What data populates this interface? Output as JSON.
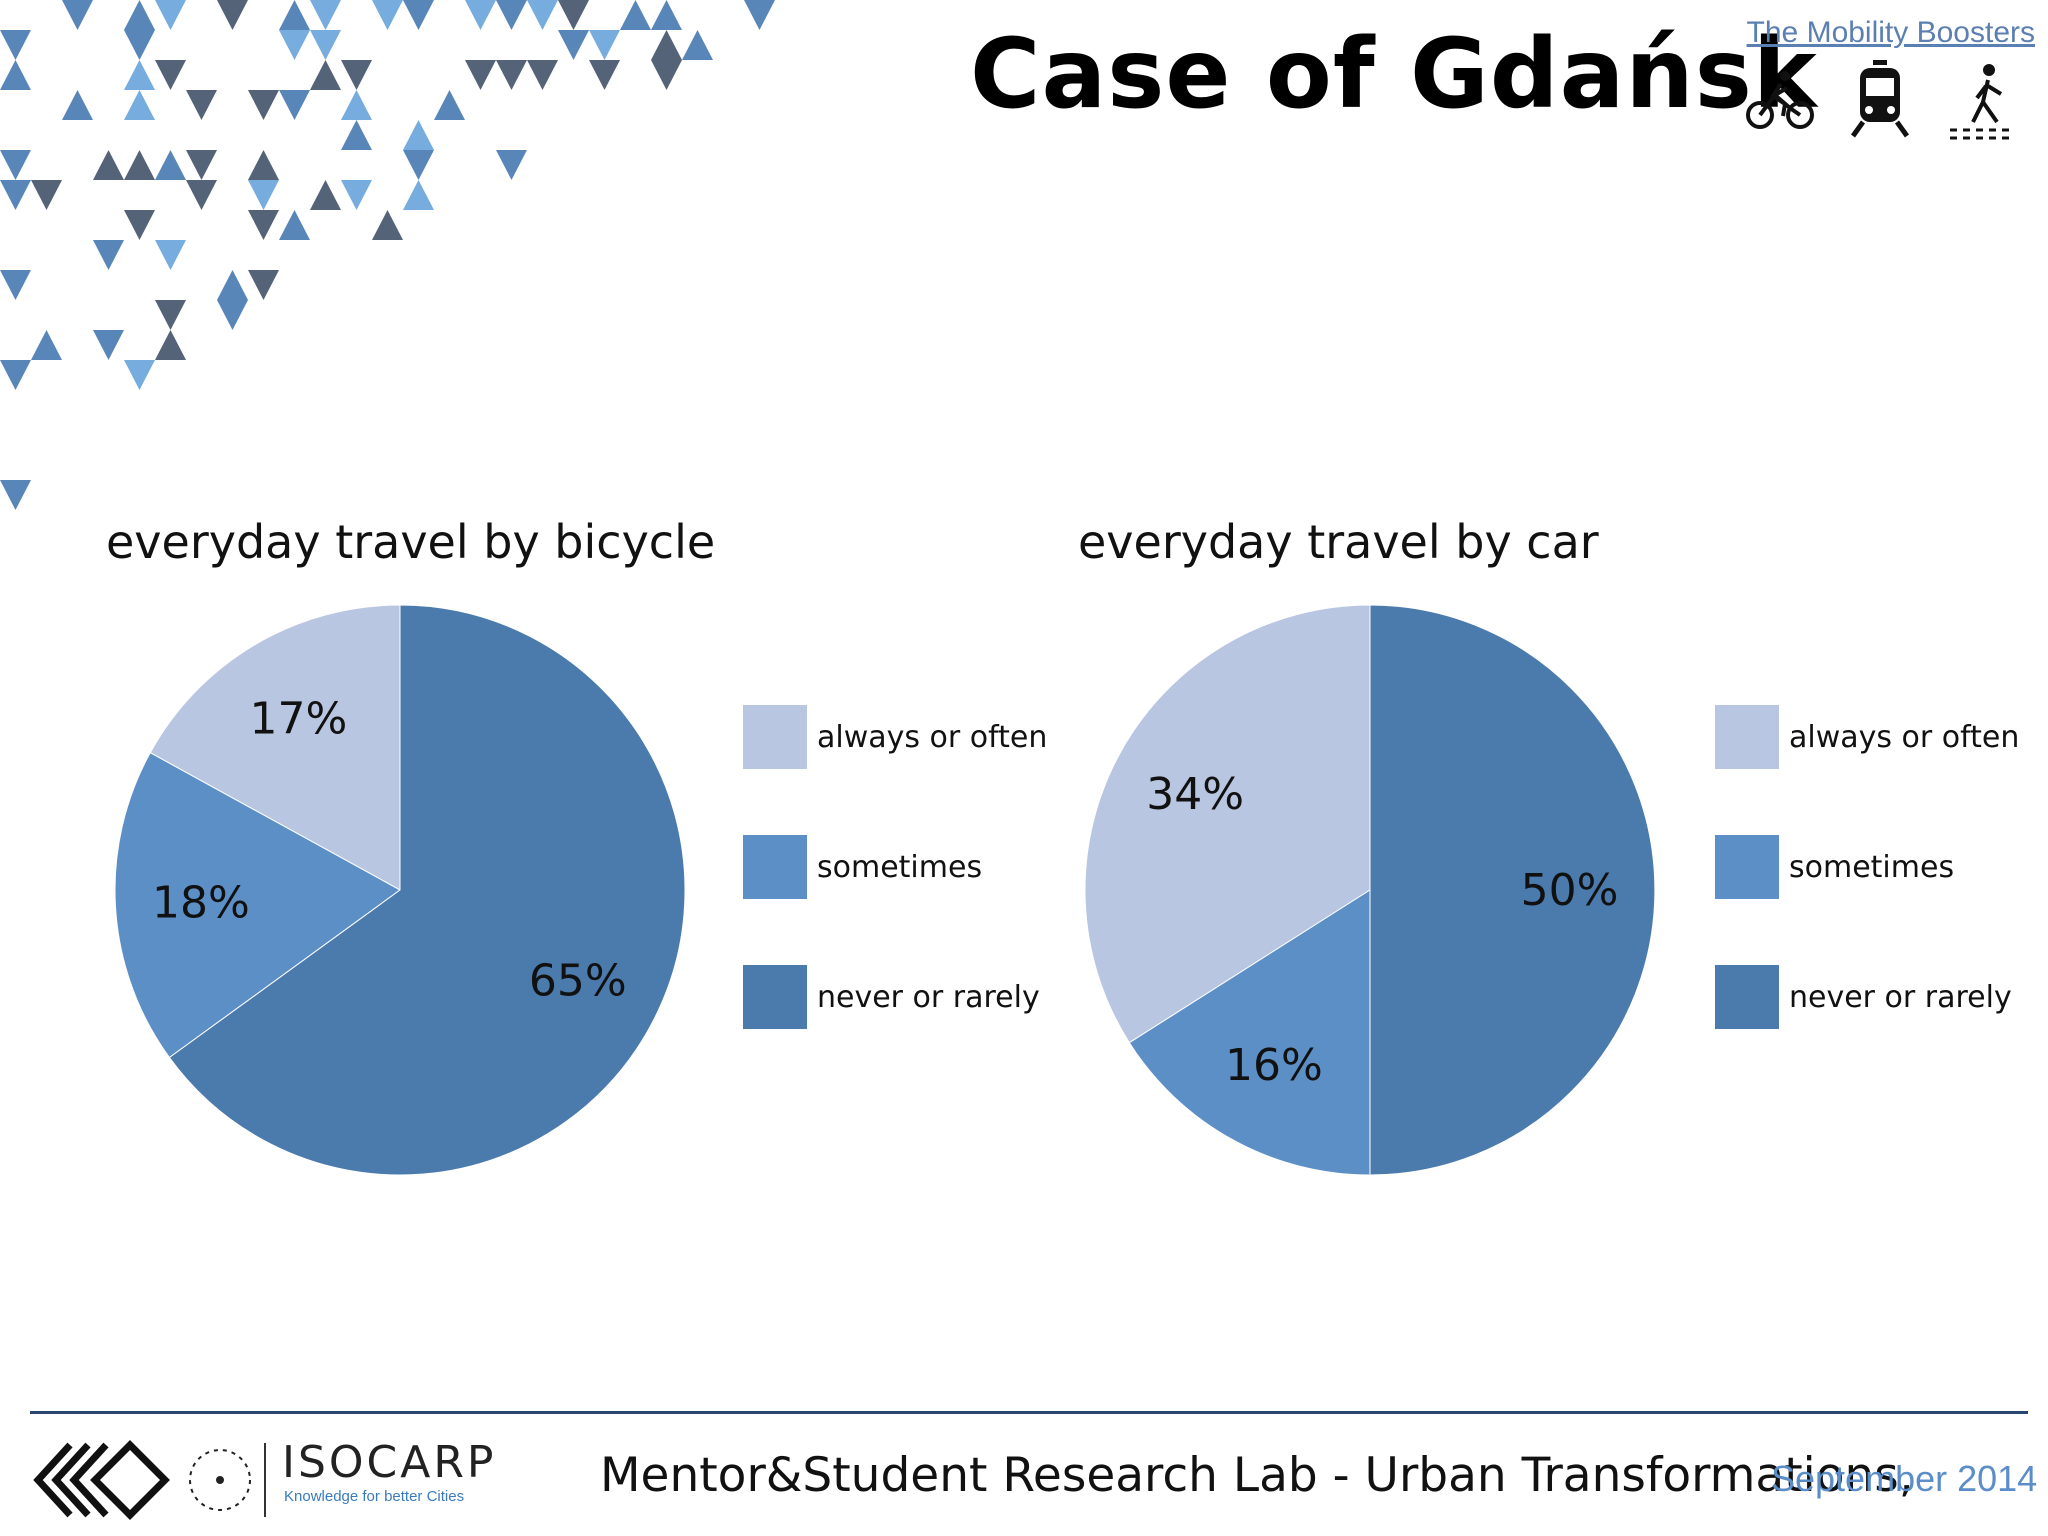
{
  "slide": {
    "title": "Case of Gdańsk",
    "brand_link": "The Mobility Boosters",
    "icons": [
      "bicycle-icon",
      "train-icon",
      "pedestrian-icon"
    ]
  },
  "colors": {
    "always_or_often": "#b9c6e1",
    "sometimes": "#5d8fc7",
    "never_or_rarely": "#4b7aad",
    "triangle_dark": "#4b5b70",
    "triangle_mid": "#4f7fb5",
    "triangle_light": "#6fa8dc"
  },
  "chart_data": [
    {
      "type": "pie",
      "title": "everyday travel by bicycle",
      "categories": [
        "always or often",
        "sometimes",
        "never or rarely"
      ],
      "values": [
        17,
        18,
        65
      ],
      "labels": [
        "17%",
        "18%",
        "65%"
      ],
      "legend": "right"
    },
    {
      "type": "pie",
      "title": "everyday travel by car",
      "categories": [
        "always or often",
        "sometimes",
        "never or rarely"
      ],
      "values": [
        34,
        16,
        50
      ],
      "labels": [
        "34%",
        "16%",
        "50%"
      ],
      "legend": "right"
    }
  ],
  "footer": {
    "org_name": "ISOCARP",
    "org_tagline": "Knowledge for better Cities",
    "text": "Mentor&Student Research Lab - Urban Transformations,",
    "date": "September 2014"
  }
}
